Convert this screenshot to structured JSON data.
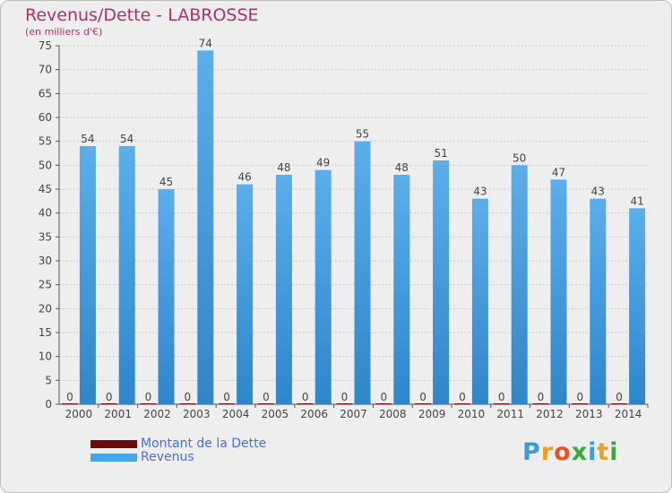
{
  "chart_data": {
    "type": "bar",
    "title": "Revenus/Dette - LABROSSE",
    "subtitle": "(en milliers d'€)",
    "categories": [
      "2000",
      "2001",
      "2002",
      "2003",
      "2004",
      "2005",
      "2006",
      "2007",
      "2008",
      "2009",
      "2010",
      "2011",
      "2012",
      "2013",
      "2014"
    ],
    "series": [
      {
        "name": "Montant de la Dette",
        "color": "#6b0a0a",
        "values": [
          0,
          0,
          0,
          0,
          0,
          0,
          0,
          0,
          0,
          0,
          0,
          0,
          0,
          0,
          0
        ]
      },
      {
        "name": "Revenus",
        "color": "#4aa3e6",
        "values": [
          54,
          54,
          45,
          74,
          46,
          48,
          49,
          55,
          48,
          51,
          43,
          50,
          47,
          43,
          41
        ]
      }
    ],
    "ylim": [
      0,
      75
    ],
    "yticks": [
      0,
      5,
      10,
      15,
      20,
      25,
      30,
      35,
      40,
      45,
      50,
      55,
      60,
      65,
      70,
      75
    ],
    "xlabel": "",
    "ylabel": "",
    "grid": true
  },
  "brand": {
    "text": "Proxiti"
  }
}
